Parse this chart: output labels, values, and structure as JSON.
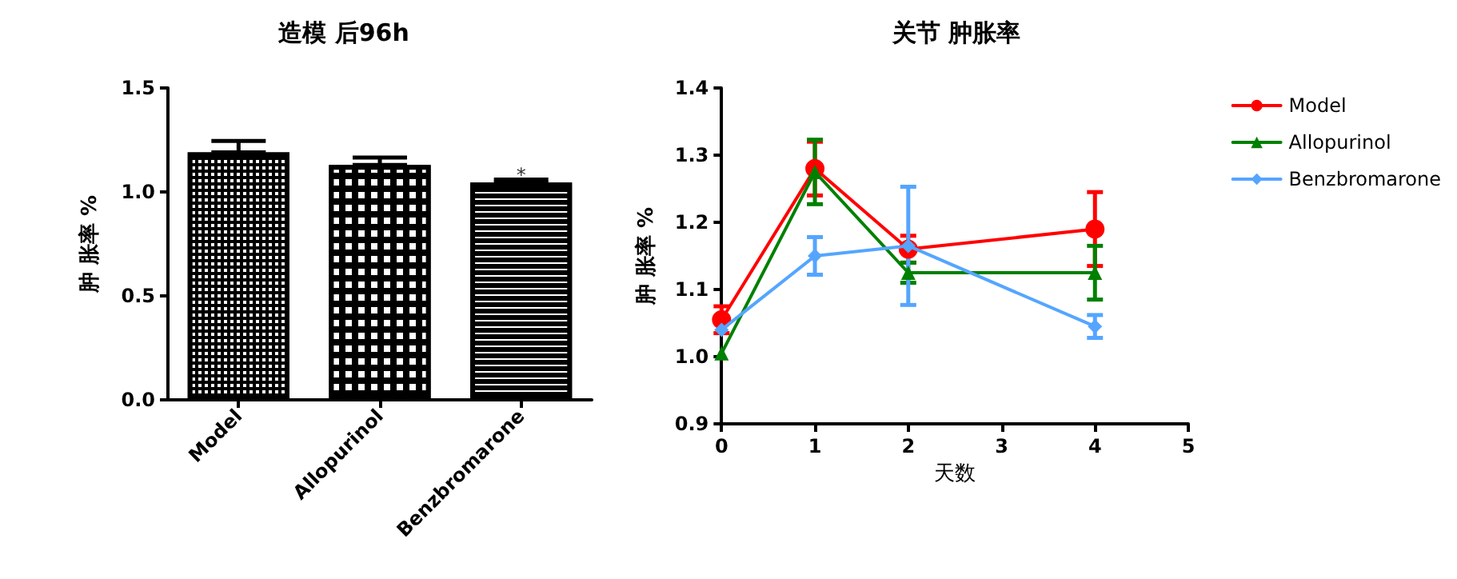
{
  "chart_data": [
    {
      "type": "bar",
      "title": "造模 后96h",
      "ylabel": "肿 胀率 %",
      "categories": [
        "Model",
        "Allopurinol",
        "Benzbromarone"
      ],
      "values": [
        1.19,
        1.13,
        1.045
      ],
      "colors": [
        "#000000",
        "#000000",
        "#000000"
      ],
      "errors": [
        [
          1.19,
          1.245
        ],
        [
          1.13,
          1.165
        ],
        [
          1.045,
          1.06
        ]
      ],
      "ylim": [
        0,
        1.5
      ],
      "yticks": [
        {
          "value": 0,
          "label": "0.0"
        },
        {
          "value": 0.5,
          "label": "0.5"
        },
        {
          "value": 1,
          "label": "1.0"
        },
        {
          "value": 1.5,
          "label": "1.5"
        }
      ],
      "annotations": [
        {
          "text": "*",
          "x": "Benzbromarone",
          "y": 1.08
        }
      ],
      "grid": false,
      "legend": false
    },
    {
      "type": "line",
      "title": "关节 肿胀率",
      "xlabel": "天数",
      "ylabel": "肿 胀率 %",
      "x": [
        0,
        1,
        2,
        4
      ],
      "series": [
        {
          "name": "Model",
          "color": "#ff0000",
          "marker": "circle",
          "values": [
            1.055,
            1.28,
            1.16,
            1.19
          ],
          "errors": [
            0.02,
            0.04,
            0.02,
            0.055
          ]
        },
        {
          "name": "Allopurinol",
          "color": "#008000",
          "marker": "triangle",
          "values": [
            1.005,
            1.275,
            1.125,
            1.125
          ],
          "errors": [
            null,
            0.048,
            0.015,
            0.04
          ]
        },
        {
          "name": "Benzbromarone",
          "color": "#55a5ff",
          "marker": "diamond",
          "values": [
            1.04,
            1.15,
            1.165,
            1.045
          ],
          "errors": [
            null,
            0.028,
            0.088,
            0.017
          ]
        }
      ],
      "xlim": [
        0,
        5
      ],
      "xticks": [
        0,
        1,
        2,
        3,
        4,
        5
      ],
      "ylim": [
        0.9,
        1.4
      ],
      "yticks": [
        {
          "value": 0.9,
          "label": "0.9"
        },
        {
          "value": 1,
          "label": "1.0"
        },
        {
          "value": 1.1,
          "label": "1.1"
        },
        {
          "value": 1.2,
          "label": "1.2"
        },
        {
          "value": 1.3,
          "label": "1.3"
        },
        {
          "value": 1.4,
          "label": "1.4"
        }
      ],
      "grid": false,
      "legend": "right",
      "line_style": "solid"
    }
  ]
}
